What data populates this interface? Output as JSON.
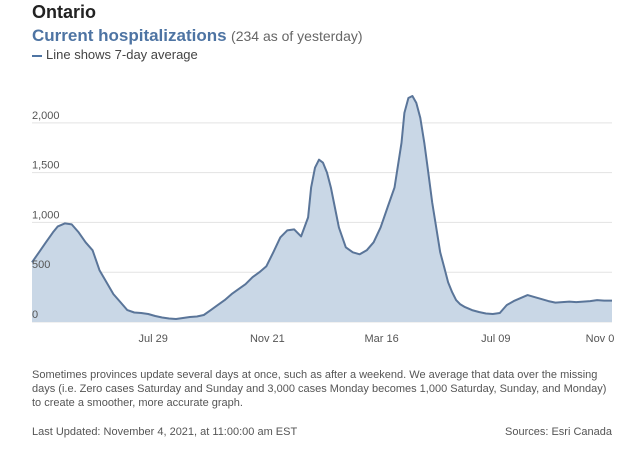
{
  "header": {
    "region": "Ontario",
    "headline": "Current hospitalizations",
    "subhead": "(234 as of yesterday)",
    "legend": "Line shows 7-day average"
  },
  "footer": {
    "note": "Sometimes provinces update several days at once, such as after a weekend. We average that data over the missing days (i.e. Zero cases Saturday and Sunday and 3,000 cases Monday becomes 1,000 Saturday, Sunday, and Monday) to create a smoother, more accurate graph.",
    "updated": "Last Updated: November 4, 2021, at 11:00:00 am EST",
    "source": "Sources: Esri Canada"
  },
  "colors": {
    "line": "#5a7599",
    "fill": "#c9d7e6",
    "grid": "#e3e3e3",
    "headline": "#4e74a3"
  },
  "chart_data": {
    "type": "area",
    "title": "Current hospitalizations",
    "subtitle": "(234 as of yesterday)",
    "ylim": [
      0,
      2350
    ],
    "yticks": [
      0,
      500,
      1000,
      1500,
      2000
    ],
    "ytick_labels": [
      "0",
      "500",
      "1,000",
      "1,500",
      "2,000"
    ],
    "xlim": [
      "2020-03-29",
      "2021-11-03"
    ],
    "xticks": [
      "2020-07-29",
      "2020-11-21",
      "2021-03-16",
      "2021-07-09",
      "2021-11-03"
    ],
    "xtick_labels": [
      "Jul 29",
      "Nov 21",
      "Mar 16",
      "Jul 09",
      "Nov 0"
    ],
    "grid": true,
    "series": [
      {
        "x": [
          "2020-03-29",
          "2020-04-05",
          "2020-04-12",
          "2020-04-19",
          "2020-04-24",
          "2020-05-01",
          "2020-05-08",
          "2020-05-15",
          "2020-05-22",
          "2020-05-29",
          "2020-06-05",
          "2020-06-12",
          "2020-06-19",
          "2020-06-26",
          "2020-07-03",
          "2020-07-10",
          "2020-07-17",
          "2020-07-24",
          "2020-07-31",
          "2020-08-07",
          "2020-08-14",
          "2020-08-21",
          "2020-08-28",
          "2020-09-04",
          "2020-09-11",
          "2020-09-18",
          "2020-09-25",
          "2020-10-02",
          "2020-10-09",
          "2020-10-16",
          "2020-10-23",
          "2020-10-30",
          "2020-11-06",
          "2020-11-13",
          "2020-11-20",
          "2020-11-27",
          "2020-12-04",
          "2020-12-11",
          "2020-12-18",
          "2020-12-25",
          "2021-01-01",
          "2021-01-04",
          "2021-01-08",
          "2021-01-12",
          "2021-01-16",
          "2021-01-20",
          "2021-01-24",
          "2021-01-28",
          "2021-02-01",
          "2021-02-08",
          "2021-02-15",
          "2021-02-22",
          "2021-03-01",
          "2021-03-08",
          "2021-03-15",
          "2021-03-22",
          "2021-03-29",
          "2021-04-05",
          "2021-04-08",
          "2021-04-12",
          "2021-04-16",
          "2021-04-20",
          "2021-04-24",
          "2021-04-28",
          "2021-05-02",
          "2021-05-06",
          "2021-05-10",
          "2021-05-14",
          "2021-05-18",
          "2021-05-22",
          "2021-05-26",
          "2021-05-30",
          "2021-06-03",
          "2021-06-08",
          "2021-06-15",
          "2021-06-22",
          "2021-06-29",
          "2021-07-06",
          "2021-07-13",
          "2021-07-20",
          "2021-07-27",
          "2021-08-03",
          "2021-08-10",
          "2021-08-17",
          "2021-08-24",
          "2021-08-31",
          "2021-09-07",
          "2021-09-14",
          "2021-09-21",
          "2021-09-28",
          "2021-10-05",
          "2021-10-12",
          "2021-10-19",
          "2021-10-26",
          "2021-11-03"
        ],
        "values": [
          600,
          700,
          800,
          900,
          960,
          990,
          980,
          900,
          800,
          720,
          520,
          400,
          280,
          200,
          120,
          95,
          90,
          80,
          60,
          45,
          35,
          30,
          40,
          50,
          55,
          70,
          120,
          170,
          220,
          280,
          330,
          380,
          450,
          500,
          560,
          700,
          850,
          920,
          930,
          860,
          1050,
          1350,
          1550,
          1630,
          1600,
          1500,
          1350,
          1150,
          950,
          750,
          700,
          680,
          720,
          800,
          950,
          1150,
          1350,
          1800,
          2100,
          2250,
          2270,
          2200,
          2050,
          1800,
          1500,
          1200,
          950,
          700,
          550,
          400,
          300,
          220,
          180,
          150,
          120,
          100,
          85,
          80,
          90,
          170,
          210,
          240,
          270,
          250,
          230,
          210,
          195,
          200,
          205,
          200,
          205,
          210,
          220,
          215,
          215
        ]
      }
    ]
  }
}
